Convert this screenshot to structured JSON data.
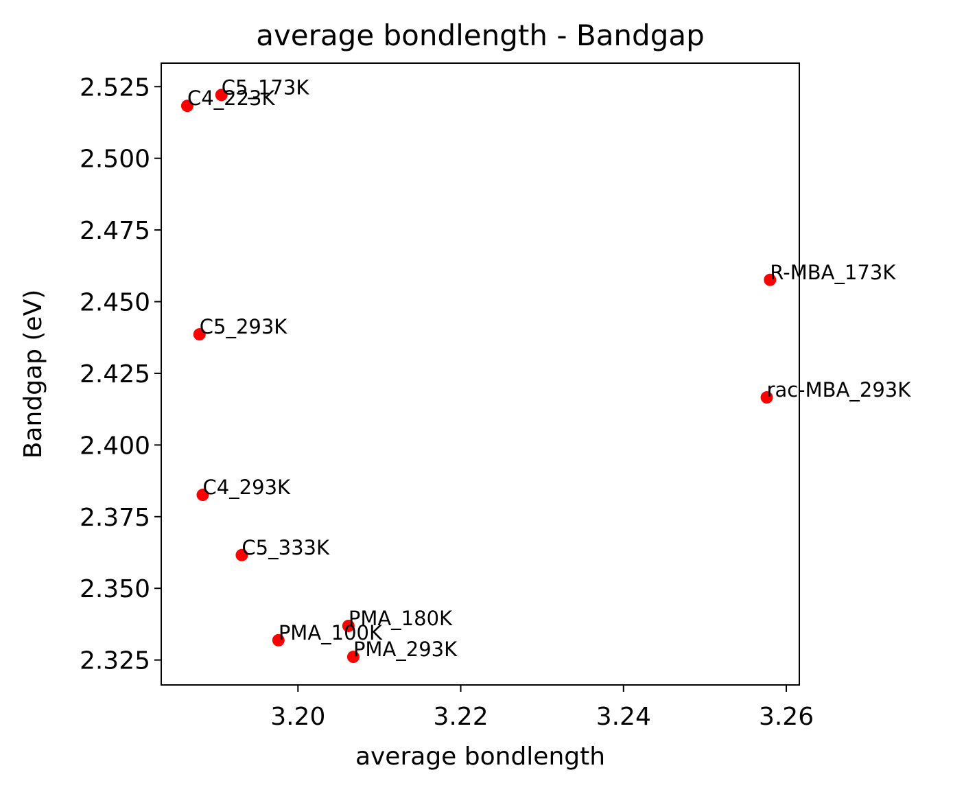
{
  "chart_data": {
    "type": "scatter",
    "title": "average bondlength - Bandgap",
    "xlabel": "average bondlength",
    "ylabel": "Bandgap (eV)",
    "xlim": [
      3.1832,
      3.2616
    ],
    "ylim": [
      2.3163,
      2.5332
    ],
    "xticks": [
      3.2,
      3.22,
      3.24,
      3.26
    ],
    "xtick_labels": [
      "3.20",
      "3.22",
      "3.24",
      "3.26"
    ],
    "yticks": [
      2.325,
      2.35,
      2.375,
      2.4,
      2.425,
      2.45,
      2.475,
      2.5,
      2.525
    ],
    "ytick_labels": [
      "2.325",
      "2.350",
      "2.375",
      "2.400",
      "2.425",
      "2.450",
      "2.475",
      "2.500",
      "2.525"
    ],
    "grid": false,
    "legend": "none",
    "marker_color": "#ff0000",
    "points": [
      {
        "label": "C5_173K",
        "x": 3.1906,
        "y": 2.5221
      },
      {
        "label": "C4_223K",
        "x": 3.1864,
        "y": 2.5183
      },
      {
        "label": "R-MBA_173K",
        "x": 3.258,
        "y": 2.4576
      },
      {
        "label": "C5_293K",
        "x": 3.1879,
        "y": 2.4386
      },
      {
        "label": "rac-MBA_293K",
        "x": 3.2576,
        "y": 2.4166
      },
      {
        "label": "C4_293K",
        "x": 3.1883,
        "y": 2.3826
      },
      {
        "label": "C5_333K",
        "x": 3.1931,
        "y": 2.3616
      },
      {
        "label": "PMA_180K",
        "x": 3.2062,
        "y": 2.3369
      },
      {
        "label": "PMA_100K",
        "x": 3.1976,
        "y": 2.3319
      },
      {
        "label": "PMA_293K",
        "x": 3.2068,
        "y": 2.3261
      }
    ]
  }
}
